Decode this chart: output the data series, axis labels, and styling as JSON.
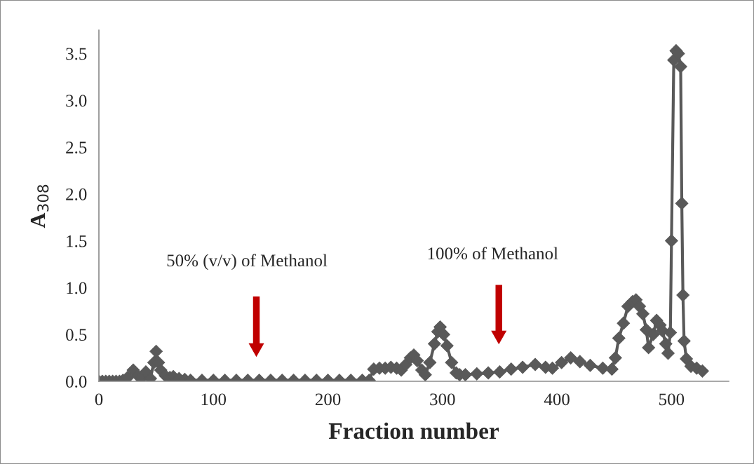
{
  "chart_data": {
    "type": "line",
    "xlabel": "Fraction number",
    "ylabel": "A$_{308}$",
    "series": [
      {
        "color": "#595959",
        "x": [
          0,
          3,
          6,
          9,
          12,
          15,
          18,
          21,
          25,
          30,
          34,
          37,
          41,
          45,
          48,
          50,
          52,
          54,
          58,
          62,
          65,
          70,
          75,
          80,
          90,
          100,
          110,
          120,
          130,
          140,
          150,
          160,
          170,
          180,
          190,
          200,
          210,
          220,
          230,
          236,
          240,
          245,
          250,
          255,
          260,
          264,
          268,
          272,
          275,
          278,
          282,
          285,
          289,
          293,
          296,
          298,
          301,
          304,
          308,
          312,
          315,
          320,
          330,
          340,
          350,
          360,
          370,
          381,
          390,
          396,
          404,
          412,
          420,
          429,
          440,
          448,
          451,
          454,
          458,
          462,
          466,
          469,
          472,
          475,
          478,
          480,
          484,
          487,
          490,
          492,
          495,
          497,
          499,
          500,
          502,
          504,
          506,
          508,
          509,
          510,
          511,
          513,
          517,
          522,
          527
        ],
        "values": [
          0,
          0,
          0,
          0,
          0,
          0,
          0,
          0.01,
          0.04,
          0.12,
          0.06,
          0.03,
          0.1,
          0.03,
          0.2,
          0.32,
          0.2,
          0.12,
          0.06,
          0.04,
          0.05,
          0.03,
          0.02,
          0.01,
          0.01,
          0.01,
          0.01,
          0.01,
          0.01,
          0.01,
          0.01,
          0.01,
          0.01,
          0.01,
          0.01,
          0.01,
          0.01,
          0.01,
          0.01,
          0.01,
          0.13,
          0.14,
          0.14,
          0.15,
          0.14,
          0.12,
          0.18,
          0.25,
          0.28,
          0.22,
          0.12,
          0.07,
          0.2,
          0.4,
          0.53,
          0.58,
          0.5,
          0.38,
          0.2,
          0.09,
          0.07,
          0.07,
          0.08,
          0.09,
          0.1,
          0.13,
          0.15,
          0.18,
          0.15,
          0.14,
          0.2,
          0.25,
          0.21,
          0.17,
          0.14,
          0.13,
          0.25,
          0.46,
          0.62,
          0.8,
          0.85,
          0.87,
          0.8,
          0.72,
          0.55,
          0.36,
          0.5,
          0.65,
          0.6,
          0.54,
          0.4,
          0.3,
          0.52,
          1.5,
          3.43,
          3.53,
          3.5,
          3.36,
          1.9,
          0.92,
          0.43,
          0.24,
          0.16,
          0.14,
          0.11
        ]
      }
    ],
    "marker": "diamond",
    "line_style": "solid",
    "xlim": [
      0,
      550
    ],
    "xticks": [
      0,
      100,
      200,
      300,
      400,
      500
    ],
    "ylim": [
      0,
      3.75
    ],
    "yticks": [
      {
        "value": 0,
        "label": "0.0"
      },
      {
        "value": 0.5,
        "label": "0.5"
      },
      {
        "value": 1,
        "label": "1.0"
      },
      {
        "value": 1.5,
        "label": "1.5"
      },
      {
        "value": 2,
        "label": "2.0"
      },
      {
        "value": 2.5,
        "label": "2.5"
      },
      {
        "value": 3,
        "label": "3.0"
      },
      {
        "value": 3.5,
        "label": "3.5"
      }
    ],
    "grid": false,
    "legend": false,
    "annotations": [
      "50% (v/v) of Methanol",
      "100% of Methanol"
    ]
  }
}
